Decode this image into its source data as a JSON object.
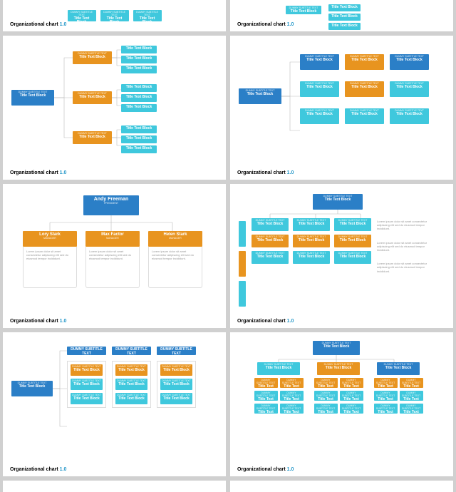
{
  "title": "Organizational chart",
  "version": "1.0",
  "subtitle": "DUMMY SUBTITLE TEXT",
  "block": "Title Text Block",
  "lorem": "Lorem ipsum dolor sit amet consectetur adipiscing elit sed do eiusmod tempor incididunt.",
  "colors": {
    "blue": "#2b7fc7",
    "cyan": "#3fc8dd",
    "orange": "#e8941f",
    "bg": "#ffffff",
    "line": "#bbbbbb"
  },
  "slide5": {
    "top": {
      "name": "Andy Freeman",
      "role": "PRESIDENT"
    },
    "kids": [
      {
        "name": "Lory Stark",
        "role": "MANAGER"
      },
      {
        "name": "Max Factor",
        "role": "MANAGER"
      },
      {
        "name": "Helen Stark",
        "role": "MANAGER"
      }
    ]
  },
  "slide4_colors": [
    "c-blue",
    "c-orange",
    "c-blue",
    "c-cyan",
    "c-orange",
    "c-cyan",
    "c-cyan",
    "c-cyan",
    "c-cyan"
  ],
  "slide7_col_items": [
    "c-orange",
    "c-cyan",
    "c-cyan"
  ],
  "slide8_main_colors": [
    "c-cyan",
    "c-orange",
    "c-blue"
  ],
  "slide8_pair_colors": [
    [
      "c-orange",
      "c-orange"
    ],
    [
      "c-cyan",
      "c-cyan"
    ],
    [
      "c-cyan",
      "c-cyan"
    ]
  ]
}
